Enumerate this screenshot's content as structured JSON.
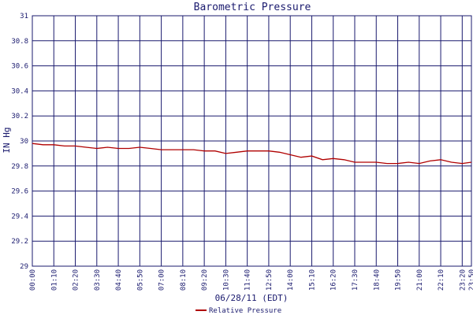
{
  "chart_data": {
    "type": "line",
    "title": "Barometric Pressure",
    "xlabel": "06/28/11 (EDT)",
    "ylabel": "IN Hg",
    "ylim": [
      29,
      31
    ],
    "yticks": [
      "29",
      "29.2",
      "29.4",
      "29.6",
      "29.8",
      "30",
      "30.2",
      "30.4",
      "30.6",
      "30.8",
      "31"
    ],
    "xticks": [
      "00:00",
      "01:10",
      "02:20",
      "03:30",
      "04:40",
      "05:50",
      "07:00",
      "08:10",
      "09:20",
      "10:30",
      "11:40",
      "12:50",
      "14:00",
      "15:10",
      "16:20",
      "17:30",
      "18:40",
      "19:50",
      "21:00",
      "22:10",
      "23:20",
      "23:50"
    ],
    "grid": true,
    "legend_position": "bottom",
    "colors": {
      "series": "#b00000",
      "grid": "#1a1a6e",
      "text": "#1a1a6e"
    },
    "series": [
      {
        "name": "Relative Pressure",
        "x": [
          "00:00",
          "00:35",
          "01:10",
          "01:45",
          "02:20",
          "02:55",
          "03:30",
          "04:05",
          "04:40",
          "05:15",
          "05:50",
          "06:25",
          "07:00",
          "07:35",
          "08:10",
          "08:45",
          "09:20",
          "09:55",
          "10:30",
          "11:05",
          "11:40",
          "12:15",
          "12:50",
          "13:25",
          "14:00",
          "14:35",
          "15:10",
          "15:45",
          "16:20",
          "16:55",
          "17:30",
          "18:05",
          "18:40",
          "19:15",
          "19:50",
          "20:25",
          "21:00",
          "21:35",
          "22:10",
          "22:45",
          "23:20",
          "23:50"
        ],
        "values": [
          29.98,
          29.97,
          29.97,
          29.96,
          29.96,
          29.95,
          29.94,
          29.95,
          29.94,
          29.94,
          29.95,
          29.94,
          29.93,
          29.93,
          29.93,
          29.93,
          29.92,
          29.92,
          29.9,
          29.91,
          29.92,
          29.92,
          29.92,
          29.91,
          29.89,
          29.87,
          29.88,
          29.85,
          29.86,
          29.85,
          29.83,
          29.83,
          29.83,
          29.82,
          29.82,
          29.83,
          29.82,
          29.84,
          29.85,
          29.83,
          29.82,
          29.83
        ]
      }
    ]
  }
}
